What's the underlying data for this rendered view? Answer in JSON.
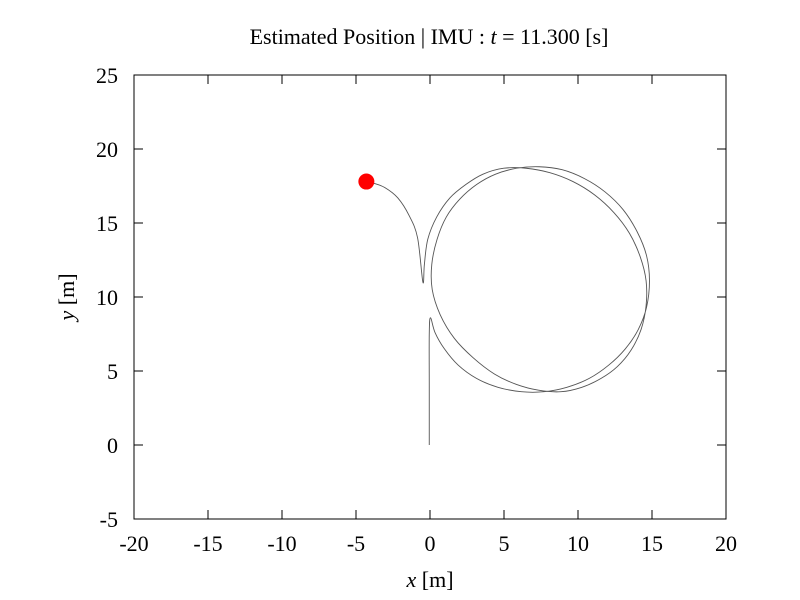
{
  "chart_data": {
    "type": "line",
    "title_prefix": "Estimated Position | IMU : ",
    "title_var": "t",
    "title_suffix": " = 11.300 [s]",
    "xlabel_var": "x",
    "xlabel_unit": " [m]",
    "ylabel_var": "y",
    "ylabel_unit": " [m]",
    "xlim": [
      -20,
      20
    ],
    "ylim": [
      -5,
      25
    ],
    "xticks": [
      -20,
      -15,
      -10,
      -5,
      0,
      5,
      10,
      15,
      20
    ],
    "yticks": [
      -5,
      0,
      5,
      10,
      15,
      20,
      25
    ],
    "xtick_labels": [
      "-20",
      "-15",
      "-10",
      "-5",
      "0",
      "5",
      "10",
      "15",
      "20"
    ],
    "ytick_labels": [
      "-5",
      "0",
      "5",
      "10",
      "15",
      "20",
      "25"
    ],
    "grid": false,
    "series": [
      {
        "kind": "trajectory",
        "color": "#555555",
        "x": [
          -0.05,
          -0.05,
          -0.05,
          0.03,
          0.34,
          0.97,
          1.9,
          3.14,
          4.59,
          6.17,
          7.7,
          9.25,
          10.76,
          12.08,
          13.2,
          14.07,
          14.63,
          14.83,
          14.63,
          14.0,
          13.05,
          11.83,
          10.44,
          8.93,
          7.38,
          5.87,
          4.43,
          3.15,
          2.0,
          1.1,
          0.48,
          0.12,
          0.15,
          0.69,
          1.65,
          2.91,
          4.35,
          5.82,
          7.34,
          8.85,
          10.26,
          11.56,
          12.66,
          13.58,
          14.26,
          14.6,
          14.6,
          14.21,
          13.48,
          12.43,
          11.12,
          9.66,
          8.1,
          6.5,
          4.99,
          3.58,
          2.42,
          1.35,
          0.45,
          -0.15,
          -0.38,
          -0.48,
          -0.84,
          -1.41,
          -2.18,
          -3.06,
          -3.85,
          -4.3
        ],
        "y": [
          0.0,
          4.0,
          7.5,
          8.6,
          7.6,
          6.5,
          5.4,
          4.5,
          3.9,
          3.6,
          3.6,
          3.9,
          4.5,
          5.4,
          6.5,
          7.8,
          9.3,
          11.1,
          12.8,
          14.4,
          15.9,
          17.1,
          18.0,
          18.6,
          18.8,
          18.7,
          18.3,
          17.6,
          16.6,
          15.4,
          13.9,
          12.2,
          10.5,
          8.8,
          7.2,
          5.9,
          4.8,
          4.1,
          3.7,
          3.6,
          3.9,
          4.5,
          5.3,
          6.4,
          7.8,
          9.4,
          11.1,
          12.7,
          14.3,
          15.7,
          16.9,
          17.8,
          18.4,
          18.7,
          18.7,
          18.3,
          17.6,
          16.7,
          15.4,
          13.9,
          12.2,
          11.0,
          14.0,
          15.5,
          16.7,
          17.4,
          17.7,
          17.8
        ]
      },
      {
        "kind": "current-position-marker",
        "color": "#ff0000",
        "x": [
          -4.3
        ],
        "y": [
          17.8
        ]
      }
    ]
  }
}
